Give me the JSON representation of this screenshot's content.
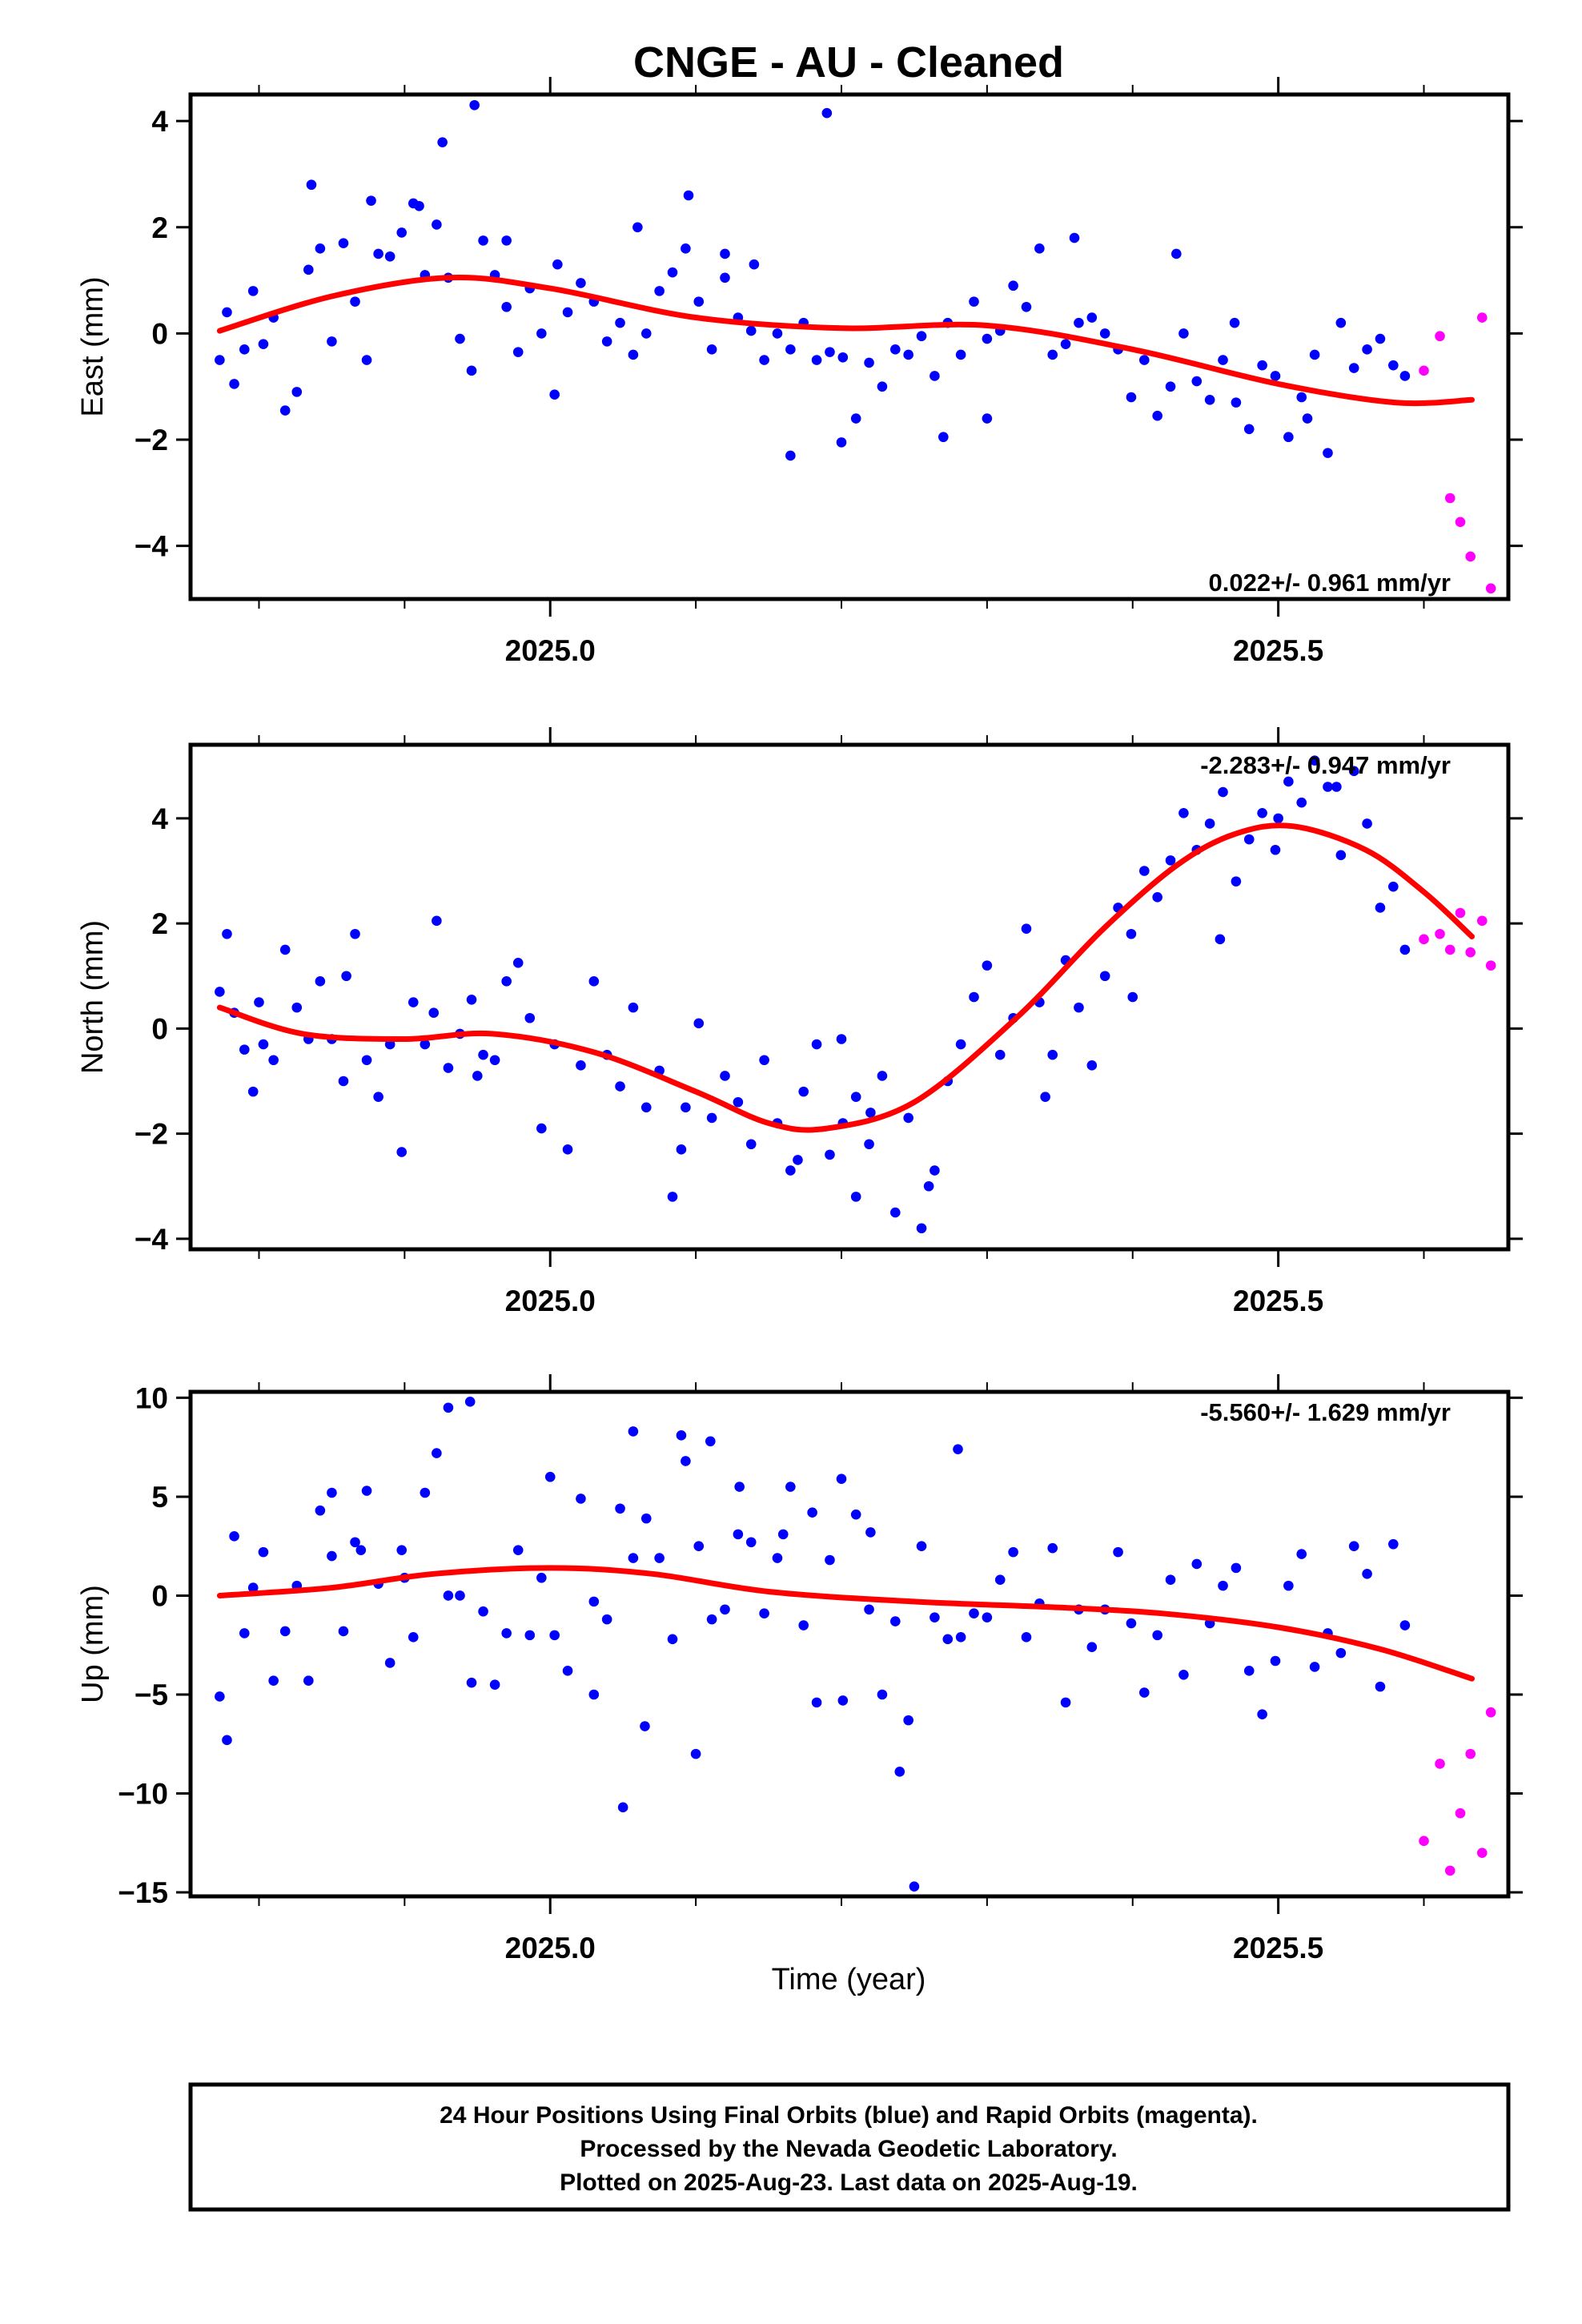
{
  "title": "CNGE  - AU - Cleaned",
  "xlabel": "Time (year)",
  "footer": {
    "line1": "24 Hour Positions Using Final Orbits (blue) and Rapid Orbits (magenta).",
    "line2": "Processed by the Nevada Geodetic Laboratory.",
    "line3": "Plotted on 2025-Aug-23. Last data on 2025-Aug-19."
  },
  "colors": {
    "final": "#0000ff",
    "rapid": "#ff00ff",
    "fit": "#ff0000"
  },
  "chart_data": [
    {
      "type": "scatter",
      "ylabel": "East (mm)",
      "rate": "0.022+/- 0.961 mm/yr",
      "xlim": [
        2024.753,
        2025.658
      ],
      "ylim": [
        -5,
        4.5
      ],
      "xticks": [
        2025.0,
        2025.5
      ],
      "xtick_labels": [
        "2025.0",
        "2025.5"
      ],
      "yticks": [
        -4,
        -2,
        0,
        2,
        4
      ],
      "ytick_labels": [
        "−4",
        "−2",
        "0",
        "2",
        "4"
      ],
      "fit": {
        "x": [
          2024.773,
          2024.85,
          2024.93,
          2025.0,
          2025.1,
          2025.2,
          2025.3,
          2025.4,
          2025.5,
          2025.58,
          2025.633
        ],
        "y": [
          0.05,
          0.7,
          1.05,
          0.85,
          0.3,
          0.1,
          0.15,
          -0.3,
          -0.95,
          -1.3,
          -1.25
        ]
      },
      "series": [
        {
          "name": "final",
          "x": [
            2024.773,
            2024.778,
            2024.783,
            2024.79,
            2024.796,
            2024.803,
            2024.81,
            2024.818,
            2024.826,
            2024.834,
            2024.842,
            2024.85,
            2024.858,
            2024.866,
            2024.874,
            2024.882,
            2024.89,
            2024.898,
            2024.906,
            2024.914,
            2024.922,
            2024.93,
            2024.938,
            2024.946,
            2024.954,
            2024.962,
            2024.97,
            2024.978,
            2024.986,
            2024.994,
            2025.003,
            2025.012,
            2025.021,
            2025.03,
            2025.039,
            2025.048,
            2025.057,
            2025.066,
            2025.075,
            2025.084,
            2025.093,
            2025.102,
            2025.111,
            2025.12,
            2025.129,
            2025.138,
            2025.147,
            2025.156,
            2025.165,
            2025.174,
            2025.183,
            2025.192,
            2025.201,
            2025.21,
            2025.219,
            2025.228,
            2025.237,
            2025.246,
            2025.255,
            2025.264,
            2025.273,
            2025.282,
            2025.291,
            2025.3,
            2025.309,
            2025.318,
            2025.327,
            2025.336,
            2025.345,
            2025.354,
            2025.363,
            2025.372,
            2025.381,
            2025.39,
            2025.399,
            2025.408,
            2025.417,
            2025.426,
            2025.435,
            2025.444,
            2025.453,
            2025.462,
            2025.471,
            2025.48,
            2025.489,
            2025.498,
            2025.507,
            2025.516,
            2025.525,
            2025.534,
            2025.543,
            2025.552,
            2025.561,
            2025.57,
            2025.579,
            2025.587,
            2024.926,
            2024.948,
            2025.19,
            2024.836,
            2025.06,
            2025.12,
            2025.165,
            2025.27,
            2024.877,
            2024.91,
            2024.97,
            2025.005,
            2025.095,
            2025.14,
            2025.2,
            2025.3,
            2025.36,
            2025.43,
            2025.47,
            2025.52
          ],
          "y": [
            -0.5,
            0.4,
            -0.95,
            -0.3,
            0.8,
            -0.2,
            0.3,
            -1.45,
            -1.1,
            1.2,
            1.6,
            -0.15,
            1.7,
            0.6,
            -0.5,
            1.5,
            1.45,
            1.9,
            2.45,
            1.1,
            2.05,
            1.05,
            -0.1,
            -0.7,
            1.75,
            1.1,
            0.5,
            -0.35,
            0.85,
            0.0,
            -1.15,
            0.4,
            0.95,
            0.6,
            -0.15,
            0.2,
            -0.4,
            0.0,
            0.8,
            1.15,
            1.6,
            0.6,
            -0.3,
            1.05,
            0.3,
            0.05,
            -0.5,
            0.0,
            -0.3,
            0.2,
            -0.5,
            -0.35,
            -0.45,
            -1.6,
            -0.55,
            -1.0,
            -0.3,
            -0.4,
            -0.05,
            -0.8,
            0.2,
            -0.4,
            0.6,
            -0.1,
            0.05,
            0.9,
            0.5,
            1.6,
            -0.4,
            -0.2,
            0.2,
            0.3,
            0.0,
            -0.3,
            -1.2,
            -0.5,
            -1.55,
            -1.0,
            0.0,
            -0.9,
            -1.25,
            -0.5,
            -1.3,
            -1.8,
            -0.6,
            -0.8,
            -1.95,
            -1.2,
            -0.4,
            -2.25,
            0.2,
            -0.65,
            -0.3,
            -0.1,
            -0.6,
            -0.8,
            3.6,
            4.3,
            4.15,
            2.8,
            2.0,
            1.5,
            -2.3,
            -1.95,
            2.5,
            2.4,
            1.75,
            1.3,
            2.6,
            1.3,
            -2.05,
            -1.6,
            1.8,
            1.5,
            0.2,
            -1.6
          ]
        },
        {
          "name": "rapid",
          "x": [
            2025.6,
            2025.611,
            2025.618,
            2025.625,
            2025.632,
            2025.64,
            2025.646
          ],
          "y": [
            -0.7,
            -0.05,
            -3.1,
            -3.55,
            -4.2,
            0.3,
            -4.8
          ]
        }
      ]
    },
    {
      "type": "scatter",
      "ylabel": "North (mm)",
      "rate": "-2.283+/- 0.947 mm/yr",
      "xlim": [
        2024.753,
        2025.658
      ],
      "ylim": [
        -4.2,
        5.4
      ],
      "xticks": [
        2025.0,
        2025.5
      ],
      "xtick_labels": [
        "2025.0",
        "2025.5"
      ],
      "yticks": [
        -4,
        -2,
        0,
        2,
        4
      ],
      "ytick_labels": [
        "−4",
        "−2",
        "0",
        "2",
        "4"
      ],
      "fit": {
        "x": [
          2024.773,
          2024.83,
          2024.9,
          2024.96,
          2025.03,
          2025.1,
          2025.15,
          2025.19,
          2025.25,
          2025.32,
          2025.38,
          2025.43,
          2025.47,
          2025.51,
          2025.56,
          2025.6,
          2025.633
        ],
        "y": [
          0.4,
          -0.1,
          -0.2,
          -0.1,
          -0.45,
          -1.2,
          -1.8,
          -1.9,
          -1.4,
          0.2,
          1.9,
          3.1,
          3.7,
          3.85,
          3.4,
          2.6,
          1.75
        ]
      },
      "series": [
        {
          "name": "final",
          "x": [
            2024.773,
            2024.778,
            2024.783,
            2024.79,
            2024.796,
            2024.803,
            2024.81,
            2024.818,
            2024.826,
            2024.834,
            2024.842,
            2024.85,
            2024.858,
            2024.866,
            2024.874,
            2024.882,
            2024.89,
            2024.898,
            2024.906,
            2024.914,
            2024.922,
            2024.93,
            2024.938,
            2024.946,
            2024.954,
            2024.962,
            2024.97,
            2024.978,
            2024.986,
            2024.994,
            2025.003,
            2025.012,
            2025.021,
            2025.03,
            2025.039,
            2025.048,
            2025.057,
            2025.066,
            2025.075,
            2025.084,
            2025.093,
            2025.102,
            2025.111,
            2025.12,
            2025.129,
            2025.138,
            2025.147,
            2025.156,
            2025.165,
            2025.174,
            2025.183,
            2025.192,
            2025.201,
            2025.21,
            2025.219,
            2025.228,
            2025.237,
            2025.246,
            2025.255,
            2025.264,
            2025.273,
            2025.282,
            2025.291,
            2025.3,
            2025.309,
            2025.318,
            2025.327,
            2025.336,
            2025.345,
            2025.354,
            2025.363,
            2025.372,
            2025.381,
            2025.39,
            2025.399,
            2025.408,
            2025.417,
            2025.426,
            2025.435,
            2025.444,
            2025.453,
            2025.462,
            2025.471,
            2025.48,
            2025.489,
            2025.498,
            2025.507,
            2025.516,
            2025.525,
            2025.534,
            2025.543,
            2025.552,
            2025.561,
            2025.57,
            2025.579,
            2025.587,
            2025.2,
            2025.22,
            2024.95,
            2025.09,
            2025.17,
            2025.21,
            2025.26,
            2025.34,
            2025.4,
            2025.46,
            2025.5,
            2025.54,
            2024.8,
            2024.86,
            2024.92
          ],
          "y": [
            0.7,
            1.8,
            0.3,
            -0.4,
            -1.2,
            -0.3,
            -0.6,
            1.5,
            0.4,
            -0.2,
            0.9,
            -0.2,
            -1.0,
            1.8,
            -0.6,
            -1.3,
            -0.3,
            -2.35,
            0.5,
            -0.3,
            2.05,
            -0.75,
            -0.1,
            0.55,
            -0.5,
            -0.6,
            0.9,
            1.25,
            0.2,
            -1.9,
            -0.3,
            -2.3,
            -0.7,
            0.9,
            -0.5,
            -1.1,
            0.4,
            -1.5,
            -0.8,
            -3.2,
            -1.5,
            0.1,
            -1.7,
            -0.9,
            -1.4,
            -2.2,
            -0.6,
            -1.8,
            -2.7,
            -1.2,
            -0.3,
            -2.4,
            -1.8,
            -1.3,
            -2.2,
            -0.9,
            -3.5,
            -1.7,
            -3.8,
            -2.7,
            -1.0,
            -0.3,
            0.6,
            1.2,
            -0.5,
            0.2,
            1.9,
            0.5,
            -0.5,
            1.3,
            0.4,
            -0.7,
            1.0,
            2.3,
            1.8,
            3.0,
            2.5,
            3.2,
            4.1,
            3.4,
            3.9,
            4.5,
            2.8,
            3.6,
            4.1,
            3.4,
            4.7,
            4.3,
            5.1,
            4.6,
            3.3,
            4.9,
            3.9,
            2.3,
            2.7,
            1.5,
            -0.2,
            -1.6,
            -0.9,
            -2.3,
            -2.5,
            -3.2,
            -3.0,
            -1.3,
            0.6,
            1.7,
            4.0,
            4.6,
            0.5,
            1.0,
            0.3
          ]
        },
        {
          "name": "rapid",
          "x": [
            2025.6,
            2025.611,
            2025.618,
            2025.625,
            2025.632,
            2025.64,
            2025.646
          ],
          "y": [
            1.7,
            1.8,
            1.5,
            2.2,
            1.45,
            2.05,
            1.2
          ]
        }
      ]
    },
    {
      "type": "scatter",
      "ylabel": "Up (mm)",
      "rate": "-5.560+/- 1.629 mm/yr",
      "xlim": [
        2024.753,
        2025.658
      ],
      "ylim": [
        -15.2,
        10.3
      ],
      "xticks": [
        2025.0,
        2025.5
      ],
      "xtick_labels": [
        "2025.0",
        "2025.5"
      ],
      "yticks": [
        -15,
        -10,
        -5,
        0,
        5,
        10
      ],
      "ytick_labels": [
        "−15",
        "−10",
        "−5",
        "0",
        "5",
        "10"
      ],
      "fit": {
        "x": [
          2024.773,
          2024.85,
          2024.92,
          2025.0,
          2025.07,
          2025.15,
          2025.25,
          2025.35,
          2025.42,
          2025.5,
          2025.57,
          2025.633
        ],
        "y": [
          0.0,
          0.4,
          1.1,
          1.4,
          1.1,
          0.2,
          -0.3,
          -0.6,
          -0.9,
          -1.6,
          -2.7,
          -4.2
        ]
      },
      "series": [
        {
          "name": "final",
          "x": [
            2024.773,
            2024.778,
            2024.783,
            2024.79,
            2024.796,
            2024.803,
            2024.81,
            2024.818,
            2024.826,
            2024.834,
            2024.842,
            2024.85,
            2024.858,
            2024.866,
            2024.874,
            2024.882,
            2024.89,
            2024.898,
            2024.906,
            2024.914,
            2024.922,
            2024.93,
            2024.938,
            2024.946,
            2024.954,
            2024.962,
            2024.97,
            2024.978,
            2024.986,
            2024.994,
            2025.003,
            2025.012,
            2025.021,
            2025.03,
            2025.039,
            2025.048,
            2025.057,
            2025.066,
            2025.075,
            2025.084,
            2025.093,
            2025.102,
            2025.111,
            2025.12,
            2025.129,
            2025.138,
            2025.147,
            2025.156,
            2025.165,
            2025.174,
            2025.183,
            2025.192,
            2025.201,
            2025.21,
            2025.219,
            2025.228,
            2025.237,
            2025.246,
            2025.255,
            2025.264,
            2025.273,
            2025.282,
            2025.291,
            2025.3,
            2025.309,
            2025.318,
            2025.327,
            2025.336,
            2025.345,
            2025.354,
            2025.363,
            2025.372,
            2025.381,
            2025.39,
            2025.399,
            2025.408,
            2025.417,
            2025.426,
            2025.435,
            2025.444,
            2025.453,
            2025.462,
            2025.471,
            2025.48,
            2025.489,
            2025.498,
            2025.507,
            2025.516,
            2025.525,
            2025.534,
            2025.543,
            2025.552,
            2025.561,
            2025.57,
            2025.579,
            2025.587,
            2024.93,
            2024.945,
            2025.05,
            2025.1,
            2025.13,
            2025.2,
            2025.24,
            2025.25,
            2025.28,
            2025.057,
            2024.85,
            2024.87,
            2024.9,
            2025.0,
            2025.03,
            2025.065,
            2025.09,
            2025.11,
            2025.16,
            2025.18,
            2025.22
          ],
          "y": [
            -5.1,
            -7.3,
            3.0,
            -1.9,
            0.4,
            2.2,
            -4.3,
            -1.8,
            0.5,
            -4.3,
            4.3,
            2.0,
            -1.8,
            2.7,
            5.3,
            0.6,
            -3.4,
            2.3,
            -2.1,
            5.2,
            7.2,
            0.0,
            0.0,
            -4.4,
            -0.8,
            -4.5,
            -1.9,
            2.3,
            -2.0,
            0.9,
            -2.0,
            -3.8,
            4.9,
            -0.3,
            -1.2,
            4.4,
            1.9,
            3.9,
            1.9,
            -2.2,
            6.8,
            2.5,
            -1.2,
            -0.7,
            3.1,
            2.7,
            -0.9,
            1.9,
            5.5,
            -1.5,
            -5.4,
            1.8,
            -5.3,
            4.1,
            -0.7,
            -5.0,
            -1.3,
            -6.3,
            2.5,
            -1.1,
            -2.2,
            -2.1,
            -0.9,
            -1.1,
            0.8,
            2.2,
            -2.1,
            -0.4,
            2.4,
            -5.4,
            -0.7,
            -2.6,
            -0.7,
            2.2,
            -1.4,
            -4.9,
            -2.0,
            0.8,
            -4.0,
            1.6,
            -1.4,
            0.5,
            1.4,
            -3.8,
            -6.0,
            -3.3,
            0.5,
            2.1,
            -3.6,
            -1.9,
            -2.9,
            2.5,
            1.1,
            -4.6,
            2.6,
            -1.5,
            9.5,
            9.8,
            -10.7,
            -8.0,
            5.5,
            5.9,
            -8.9,
            -14.7,
            7.4,
            8.3,
            5.2,
            2.3,
            0.9,
            6.0,
            -5.0,
            -6.6,
            8.1,
            7.8,
            3.1,
            4.2,
            3.2
          ]
        },
        {
          "name": "rapid",
          "x": [
            2025.6,
            2025.611,
            2025.618,
            2025.625,
            2025.632,
            2025.64,
            2025.646
          ],
          "y": [
            -12.4,
            -8.5,
            -13.9,
            -11.0,
            -8.0,
            -13.0,
            -5.9
          ]
        }
      ]
    }
  ]
}
